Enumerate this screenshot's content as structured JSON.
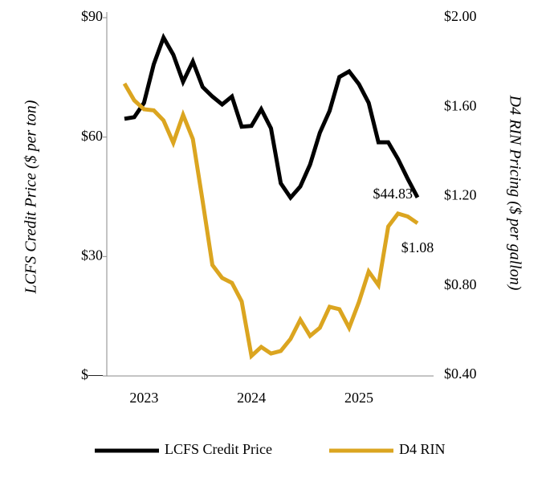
{
  "chart_data": {
    "type": "line",
    "y_label": "LCFS Credit Price ($ per ton)",
    "y2_label": "D4 RIN Pricing ($ per gallon)",
    "categories": [
      null,
      null,
      "2023",
      null,
      null,
      null,
      null,
      null,
      null,
      null,
      null,
      null,
      null,
      "2024",
      null,
      null,
      null,
      null,
      null,
      null,
      null,
      null,
      null,
      null,
      "2025",
      null,
      null,
      null,
      null,
      null,
      null
    ],
    "series": [
      {
        "name": "LCFS Credit Price",
        "color": "#000000",
        "values": [
          64.6,
          65,
          68.6,
          78.3,
          85,
          80.7,
          73.9,
          79,
          72.6,
          70.2,
          68.2,
          70.2,
          62.6,
          62.8,
          67,
          62.2,
          48.4,
          44.8,
          47.6,
          53.1,
          61.1,
          66.6,
          75.1,
          76.5,
          73.3,
          68.6,
          58.7,
          58.7,
          54.5,
          49.5,
          44.83
        ],
        "value_labels": [
          null,
          null,
          null,
          null,
          null,
          null,
          null,
          null,
          null,
          null,
          null,
          null,
          null,
          null,
          null,
          null,
          null,
          null,
          null,
          null,
          null,
          null,
          null,
          null,
          null,
          null,
          null,
          null,
          null,
          null,
          "$44.83"
        ]
      },
      {
        "name": "D4 RIN",
        "color": "#dba520",
        "axis": "y2",
        "values": [
          1.705,
          1.63,
          1.59,
          1.585,
          1.54,
          1.44,
          1.565,
          1.457,
          1.18,
          0.893,
          0.835,
          0.813,
          0.73,
          0.486,
          0.526,
          0.497,
          0.508,
          0.562,
          0.648,
          0.576,
          0.612,
          0.706,
          0.695,
          0.612,
          0.727,
          0.864,
          0.803,
          1.065,
          1.123,
          1.11,
          1.08
        ],
        "value_labels": [
          null,
          null,
          null,
          null,
          null,
          null,
          null,
          null,
          null,
          null,
          null,
          null,
          null,
          null,
          null,
          null,
          null,
          null,
          null,
          null,
          null,
          null,
          null,
          null,
          null,
          null,
          null,
          null,
          null,
          null,
          "$1.08"
        ]
      }
    ],
    "ylim": [
      0,
      90
    ],
    "yticks": [
      {
        "value": 0,
        "label": "$—"
      },
      {
        "value": 30,
        "label": "$30"
      },
      {
        "value": 60,
        "label": "$60"
      },
      {
        "value": 90,
        "label": "$90"
      }
    ],
    "y2lim": [
      0.4,
      2.0
    ],
    "y2ticks": [
      {
        "value": 0.4,
        "label": "$0.40"
      },
      {
        "value": 0.8,
        "label": "$0.80"
      },
      {
        "value": 1.2,
        "label": "$1.20"
      },
      {
        "value": 1.6,
        "label": "$1.60"
      },
      {
        "value": 2.0,
        "label": "$2.00"
      }
    ],
    "legend": "bottom",
    "grid": false
  }
}
